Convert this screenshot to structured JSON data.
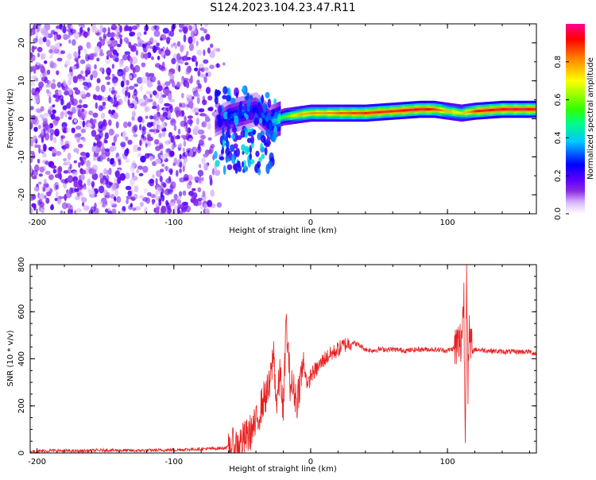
{
  "chart_title": "S124.2023.104.23.47.R11",
  "chart_data": [
    {
      "type": "heatmap",
      "xlabel": "Height of straight line (km)",
      "ylabel": "Frequency (Hz)",
      "xlim": [
        -205,
        165
      ],
      "ylim": [
        -25,
        25
      ],
      "x_ticks": [
        -200,
        -100,
        0,
        100
      ],
      "y_ticks": [
        -20,
        -10,
        0,
        10,
        20
      ],
      "colorbar": {
        "label": "Normalized spectral amplitude",
        "range": [
          0,
          1
        ],
        "ticks": [
          0.0,
          0.2,
          0.4,
          0.6,
          0.8
        ],
        "colormap": [
          "#ffffff",
          "#d9b8ff",
          "#8a2be2",
          "#5b00ff",
          "#0000ff",
          "#00c8ff",
          "#00ff80",
          "#30ff00",
          "#ffff00",
          "#ff8000",
          "#ff0000",
          "#ff0090"
        ]
      },
      "noise_region": {
        "x_range": [
          -205,
          -70
        ],
        "amplitude_level": 0.1
      },
      "ridge": {
        "x": [
          -70,
          -60,
          -50,
          -40,
          -30,
          -20,
          -10,
          0,
          10,
          20,
          40,
          60,
          80,
          90,
          100,
          110,
          120,
          140,
          165
        ],
        "y": [
          -1.5,
          0.5,
          1.5,
          2.5,
          -1.0,
          0.5,
          1.0,
          1.5,
          1.5,
          1.5,
          1.5,
          2.0,
          2.5,
          2.5,
          2.0,
          1.5,
          2.0,
          2.5,
          2.5
        ],
        "amplitude": [
          0.15,
          0.3,
          0.3,
          0.25,
          0.35,
          0.55,
          0.75,
          0.8,
          0.8,
          0.85,
          0.9,
          0.9,
          0.95,
          0.9,
          0.75,
          0.7,
          0.9,
          0.95,
          0.95
        ]
      },
      "grid": false
    },
    {
      "type": "line",
      "xlabel": "Height of straight line (km)",
      "ylabel": "SNR (10 * v/v)",
      "xlim": [
        -205,
        165
      ],
      "ylim": [
        0,
        800
      ],
      "x_ticks": [
        -200,
        -100,
        0,
        100
      ],
      "y_ticks": [
        0,
        200,
        400,
        600,
        800
      ],
      "color": "#e82020",
      "series": [
        {
          "x": [
            -205,
            -190,
            -170,
            -150,
            -130,
            -110,
            -90,
            -75,
            -65,
            -55,
            -50,
            -45,
            -40,
            -35,
            -30,
            -27,
            -25,
            -22,
            -20,
            -18,
            -15,
            -12,
            -10,
            -8,
            -5,
            -2,
            0,
            5,
            10,
            15,
            20,
            25,
            30,
            35,
            40,
            45,
            50,
            60,
            70,
            80,
            90,
            100,
            105,
            110,
            112,
            113,
            114,
            115,
            116,
            118,
            120,
            130,
            140,
            150,
            160,
            165
          ],
          "y": [
            5,
            10,
            8,
            12,
            10,
            12,
            15,
            18,
            20,
            30,
            50,
            80,
            120,
            220,
            280,
            430,
            200,
            350,
            150,
            560,
            300,
            260,
            220,
            300,
            380,
            280,
            330,
            360,
            400,
            420,
            440,
            460,
            470,
            460,
            440,
            435,
            440,
            440,
            435,
            440,
            440,
            435,
            445,
            470,
            650,
            40,
            810,
            300,
            480,
            430,
            440,
            435,
            430,
            430,
            430,
            420
          ]
        }
      ],
      "grid": false
    }
  ]
}
